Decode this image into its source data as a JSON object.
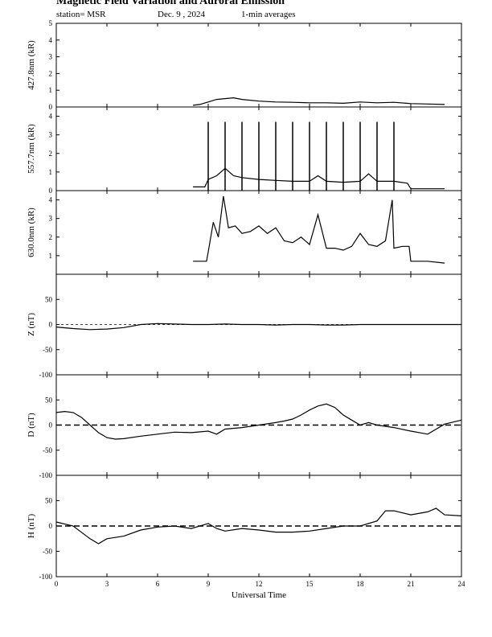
{
  "header": {
    "title": "Magnetic Field Variation and Auroral Emission",
    "station": "station= MSR",
    "date": "Dec. 9  , 2024",
    "note": "1-min averages"
  },
  "chart_data": [
    {
      "type": "line",
      "ylabel": "427.8nm (kR)",
      "ylim": [
        0,
        5
      ],
      "yticks": [
        0,
        1,
        2,
        3,
        4,
        5
      ],
      "x": [
        8.1,
        8.5,
        9,
        9.5,
        10,
        10.5,
        11,
        12,
        13,
        14,
        15,
        16,
        17,
        18,
        19,
        20,
        21,
        22,
        23
      ],
      "values": [
        0.1,
        0.15,
        0.3,
        0.45,
        0.5,
        0.55,
        0.45,
        0.35,
        0.3,
        0.28,
        0.25,
        0.25,
        0.22,
        0.3,
        0.25,
        0.28,
        0.2,
        0.18,
        0.15
      ]
    },
    {
      "type": "line",
      "ylabel": "557.7nm (kR)",
      "ylim": [
        0,
        4.5
      ],
      "yticks": [
        0,
        1,
        2,
        3,
        4
      ],
      "x": [
        8.1,
        8.8,
        9,
        9.5,
        10,
        10.5,
        11,
        12,
        13,
        14,
        15,
        15.5,
        16,
        17,
        18,
        18.5,
        19,
        20,
        20.8,
        21,
        22,
        23
      ],
      "values": [
        0.2,
        0.2,
        0.6,
        0.8,
        1.2,
        0.8,
        0.7,
        0.6,
        0.55,
        0.5,
        0.5,
        0.8,
        0.5,
        0.45,
        0.5,
        0.9,
        0.5,
        0.5,
        0.4,
        0.1,
        0.1,
        0.1
      ],
      "spikes_x": [
        9,
        10,
        11,
        12,
        13,
        14,
        15,
        16,
        17,
        18,
        19,
        20
      ],
      "spike_top": 3.7
    },
    {
      "type": "line",
      "ylabel": "630.0nm (kR)",
      "ylim": [
        0,
        4.5
      ],
      "yticks": [
        1,
        2,
        3,
        4
      ],
      "x": [
        8.1,
        8.9,
        9,
        9.3,
        9.6,
        9.9,
        10.2,
        10.6,
        11,
        11.5,
        12,
        12.5,
        13,
        13.5,
        14,
        14.5,
        15,
        15.5,
        16,
        16.5,
        17,
        17.5,
        18,
        18.5,
        19,
        19.5,
        19.9,
        20,
        20.5,
        20.9,
        21,
        22,
        23
      ],
      "values": [
        0.7,
        0.7,
        1.2,
        2.8,
        2.0,
        4.2,
        2.5,
        2.6,
        2.2,
        2.3,
        2.6,
        2.2,
        2.5,
        1.8,
        1.7,
        2.0,
        1.6,
        3.2,
        1.4,
        1.4,
        1.3,
        1.5,
        2.2,
        1.6,
        1.5,
        1.8,
        4.0,
        1.4,
        1.5,
        1.5,
        0.7,
        0.7,
        0.6
      ]
    },
    {
      "type": "line",
      "ylabel": "Z (nT)",
      "ylim": [
        -100,
        100
      ],
      "yticks": [
        -100,
        -50,
        0,
        50
      ],
      "baseline_style": "thin dashed",
      "x": [
        0,
        1,
        2,
        3,
        4,
        5,
        6,
        7,
        8,
        9,
        10,
        11,
        12,
        13,
        14,
        15,
        16,
        17,
        18,
        19,
        20,
        21,
        22,
        23,
        24
      ],
      "values": [
        -5,
        -8,
        -10,
        -9,
        -6,
        0,
        2,
        1,
        0,
        0,
        1,
        0,
        0,
        -1,
        0,
        0,
        -1,
        -1,
        0,
        0,
        0,
        0,
        0,
        0,
        0
      ]
    },
    {
      "type": "line",
      "ylabel": "D (nT)",
      "ylim": [
        -100,
        100
      ],
      "yticks": [
        -100,
        -50,
        0,
        50
      ],
      "baseline_style": "thick dashed",
      "x": [
        0,
        0.5,
        1,
        1.5,
        2,
        2.5,
        3,
        3.5,
        4,
        5,
        6,
        7,
        8,
        9,
        9.5,
        10,
        11,
        12,
        13,
        13.5,
        14,
        14.5,
        15,
        15.5,
        16,
        16.5,
        17,
        17.5,
        18,
        18.5,
        19,
        20,
        21,
        22,
        23,
        24
      ],
      "values": [
        25,
        27,
        25,
        15,
        0,
        -15,
        -25,
        -28,
        -27,
        -22,
        -18,
        -14,
        -15,
        -12,
        -18,
        -8,
        -5,
        0,
        5,
        8,
        12,
        20,
        30,
        38,
        42,
        35,
        20,
        10,
        0,
        5,
        0,
        -5,
        -12,
        -18,
        2,
        10
      ]
    },
    {
      "type": "line",
      "ylabel": "H (nT)",
      "ylim": [
        -100,
        100
      ],
      "yticks": [
        -100,
        -50,
        0,
        50
      ],
      "baseline_style": "thick dashed",
      "x": [
        0,
        1,
        2,
        2.5,
        3,
        4,
        5,
        6,
        7,
        8,
        9,
        9.5,
        10,
        11,
        12,
        13,
        14,
        15,
        16,
        17,
        18,
        19,
        19.5,
        20,
        21,
        22,
        22.5,
        23,
        24
      ],
      "values": [
        8,
        0,
        -25,
        -35,
        -25,
        -20,
        -8,
        -2,
        0,
        -5,
        5,
        -5,
        -10,
        -5,
        -8,
        -12,
        -12,
        -10,
        -5,
        0,
        0,
        10,
        30,
        30,
        22,
        28,
        35,
        22,
        20
      ]
    }
  ],
  "x_axis": {
    "label": "Universal Time",
    "xlim": [
      0,
      24
    ],
    "ticks": [
      0,
      3,
      6,
      9,
      12,
      15,
      18,
      21,
      24
    ]
  }
}
